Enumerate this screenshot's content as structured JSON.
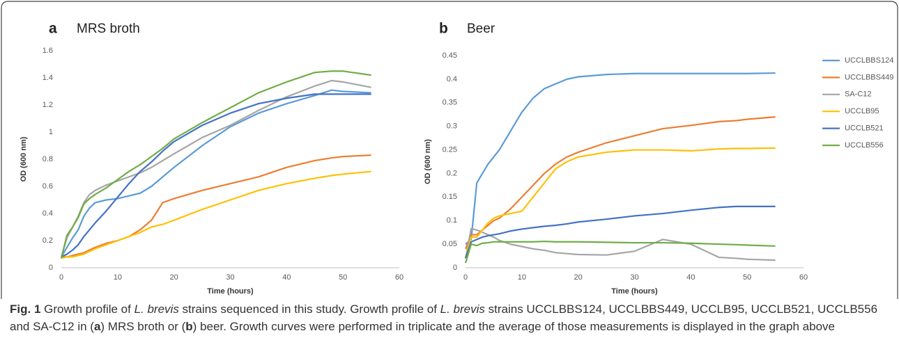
{
  "chart_data": [
    {
      "type": "line",
      "panel": "a",
      "title": "MRS broth",
      "xlabel": "Time (hours)",
      "ylabel": "OD (600 nm)",
      "x": [
        0,
        1,
        2,
        3,
        4,
        5,
        6,
        8,
        10,
        12,
        14,
        16,
        18,
        20,
        25,
        30,
        35,
        40,
        45,
        48,
        50,
        55
      ],
      "xlim": [
        0,
        60
      ],
      "xticks": [
        0,
        10,
        20,
        30,
        40,
        50,
        60
      ],
      "ylim": [
        0,
        1.6
      ],
      "yticks": [
        0,
        0.2,
        0.4,
        0.6,
        0.8,
        1,
        1.2,
        1.4,
        1.6
      ],
      "grid": false,
      "series": [
        {
          "color": "#5b9bd5",
          "values": [
            0.08,
            0.15,
            0.22,
            0.28,
            0.38,
            0.44,
            0.48,
            0.5,
            0.51,
            0.53,
            0.55,
            0.6,
            0.67,
            0.74,
            0.9,
            1.04,
            1.14,
            1.21,
            1.27,
            1.31,
            1.3,
            1.29
          ]
        },
        {
          "color": "#ed7d31",
          "values": [
            0.08,
            0.08,
            0.09,
            0.1,
            0.11,
            0.13,
            0.15,
            0.18,
            0.2,
            0.23,
            0.28,
            0.35,
            0.48,
            0.51,
            0.57,
            0.62,
            0.67,
            0.74,
            0.79,
            0.81,
            0.82,
            0.83
          ]
        },
        {
          "color": "#a5a5a5",
          "values": [
            0.08,
            0.22,
            0.3,
            0.38,
            0.48,
            0.54,
            0.57,
            0.61,
            0.64,
            0.67,
            0.7,
            0.74,
            0.79,
            0.84,
            0.96,
            1.05,
            1.16,
            1.26,
            1.34,
            1.38,
            1.37,
            1.33
          ]
        },
        {
          "color": "#ffc000",
          "values": [
            0.07,
            0.08,
            0.08,
            0.09,
            0.1,
            0.12,
            0.14,
            0.17,
            0.2,
            0.23,
            0.26,
            0.3,
            0.32,
            0.35,
            0.43,
            0.5,
            0.57,
            0.62,
            0.66,
            0.68,
            0.69,
            0.71
          ]
        },
        {
          "color": "#4472c4",
          "values": [
            0.08,
            0.1,
            0.13,
            0.17,
            0.23,
            0.28,
            0.33,
            0.42,
            0.52,
            0.62,
            0.71,
            0.78,
            0.86,
            0.93,
            1.05,
            1.14,
            1.21,
            1.25,
            1.28,
            1.28,
            1.28,
            1.28
          ]
        },
        {
          "color": "#70ad47",
          "values": [
            0.07,
            0.24,
            0.3,
            0.37,
            0.47,
            0.51,
            0.54,
            0.59,
            0.65,
            0.71,
            0.76,
            0.82,
            0.88,
            0.95,
            1.07,
            1.18,
            1.29,
            1.37,
            1.44,
            1.45,
            1.45,
            1.42
          ]
        }
      ]
    },
    {
      "type": "line",
      "panel": "b",
      "title": "Beer",
      "xlabel": "Time (hours)",
      "ylabel": "OD (600 nm)",
      "x": [
        0,
        1,
        2,
        3,
        4,
        5,
        6,
        8,
        10,
        12,
        14,
        16,
        18,
        20,
        25,
        30,
        35,
        40,
        45,
        48,
        50,
        55
      ],
      "xlim": [
        0,
        60
      ],
      "xticks": [
        0,
        10,
        20,
        30,
        40,
        50,
        60
      ],
      "ylim": [
        0,
        0.45
      ],
      "yticks": [
        0,
        0.05,
        0.1,
        0.15,
        0.2,
        0.25,
        0.3,
        0.35,
        0.4,
        0.45
      ],
      "grid": false,
      "legend": "right",
      "series": [
        {
          "name": "UCCLBBS124",
          "color": "#5b9bd5",
          "values": [
            0.05,
            0.06,
            0.18,
            0.2,
            0.22,
            0.235,
            0.25,
            0.29,
            0.33,
            0.36,
            0.38,
            0.39,
            0.4,
            0.405,
            0.41,
            0.412,
            0.412,
            0.412,
            0.412,
            0.412,
            0.412,
            0.413
          ]
        },
        {
          "name": "UCCLBBS449",
          "color": "#ed7d31",
          "values": [
            0.04,
            0.07,
            0.07,
            0.08,
            0.09,
            0.1,
            0.105,
            0.125,
            0.15,
            0.175,
            0.2,
            0.22,
            0.235,
            0.245,
            0.265,
            0.28,
            0.295,
            0.302,
            0.31,
            0.312,
            0.315,
            0.32
          ]
        },
        {
          "name": "SA-C12",
          "color": "#a5a5a5",
          "values": [
            0.02,
            0.083,
            0.08,
            0.075,
            0.07,
            0.065,
            0.058,
            0.05,
            0.045,
            0.04,
            0.037,
            0.032,
            0.03,
            0.028,
            0.027,
            0.035,
            0.06,
            0.05,
            0.022,
            0.02,
            0.018,
            0.016
          ]
        },
        {
          "name": "UCCLB95",
          "color": "#ffc000",
          "values": [
            0.02,
            0.065,
            0.065,
            0.08,
            0.095,
            0.105,
            0.11,
            0.115,
            0.12,
            0.15,
            0.18,
            0.21,
            0.225,
            0.235,
            0.245,
            0.25,
            0.25,
            0.248,
            0.252,
            0.253,
            0.253,
            0.254
          ]
        },
        {
          "name": "UCCLB521",
          "color": "#4472c4",
          "values": [
            0.02,
            0.055,
            0.06,
            0.065,
            0.068,
            0.07,
            0.072,
            0.078,
            0.082,
            0.085,
            0.088,
            0.09,
            0.093,
            0.097,
            0.103,
            0.11,
            0.115,
            0.122,
            0.128,
            0.13,
            0.13,
            0.13
          ]
        },
        {
          "name": "UCCLB556",
          "color": "#70ad47",
          "values": [
            0.01,
            0.05,
            0.047,
            0.052,
            0.053,
            0.055,
            0.055,
            0.055,
            0.055,
            0.055,
            0.056,
            0.055,
            0.055,
            0.055,
            0.054,
            0.053,
            0.053,
            0.052,
            0.05,
            0.049,
            0.048,
            0.046
          ]
        }
      ]
    }
  ],
  "caption": [
    {
      "text": "Fig. 1",
      "bold": true
    },
    {
      "text": " Growth profile of "
    },
    {
      "text": "L. brevis",
      "italic": true
    },
    {
      "text": " strains sequenced in this study. Growth profile of "
    },
    {
      "text": "L. brevis",
      "italic": true
    },
    {
      "text": " strains UCCLBBS124, UCCLBBS449, UCCLB95, UCCLB521, UCCLB556 and SA-C12 in ("
    },
    {
      "text": "a",
      "bold": true
    },
    {
      "text": ") MRS broth or ("
    },
    {
      "text": "b",
      "bold": true
    },
    {
      "text": ") beer. Growth curves were performed in triplicate and the average of those measurements is displayed in the graph above"
    }
  ]
}
